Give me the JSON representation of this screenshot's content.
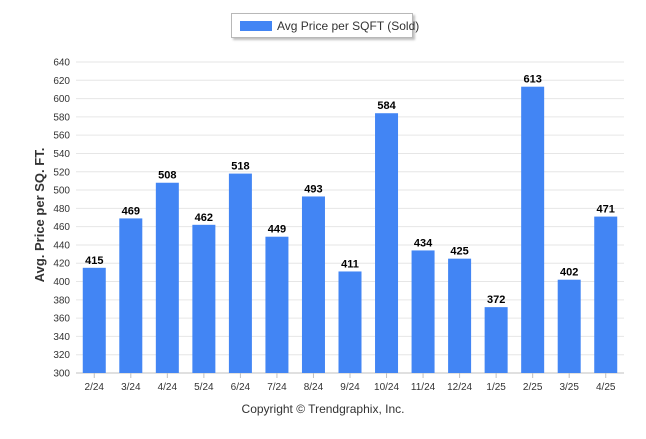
{
  "chart_data": {
    "type": "bar",
    "categories": [
      "2/24",
      "3/24",
      "4/24",
      "5/24",
      "6/24",
      "7/24",
      "8/24",
      "9/24",
      "10/24",
      "11/24",
      "12/24",
      "1/25",
      "2/25",
      "3/25",
      "4/25"
    ],
    "series": [
      {
        "name": "Avg Price per SQFT (Sold)",
        "values": [
          415,
          469,
          508,
          462,
          518,
          449,
          493,
          411,
          584,
          434,
          425,
          372,
          613,
          402,
          471
        ]
      }
    ],
    "ylabel": "Avg. Price per SQ. FT.",
    "xlabel": "",
    "ylim": [
      300,
      640
    ],
    "yticks": [
      300,
      320,
      340,
      360,
      380,
      400,
      420,
      440,
      460,
      480,
      500,
      520,
      540,
      560,
      580,
      600,
      620,
      640
    ],
    "grid": true,
    "legend_position": "top-center",
    "data_labels": true,
    "bar_color": "#4285f4"
  },
  "legend": {
    "label": "Avg Price per SQFT (Sold)"
  },
  "footer": {
    "copyright": "Copyright © Trendgraphix, Inc."
  }
}
